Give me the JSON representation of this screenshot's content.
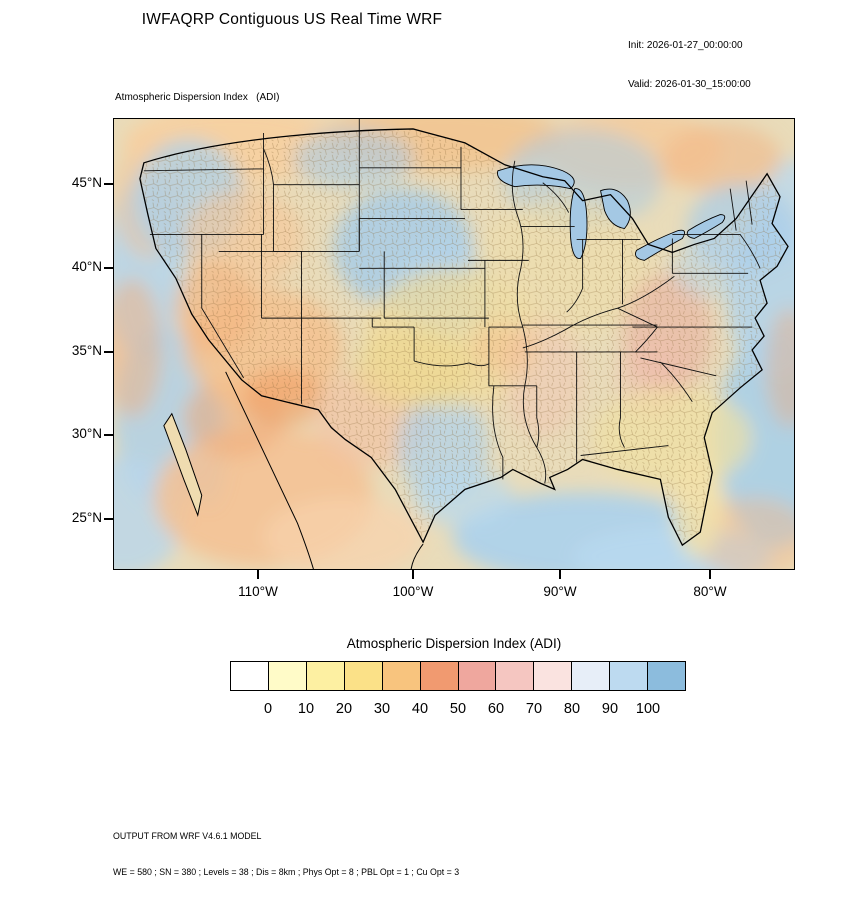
{
  "header": {
    "title": "IWFAQRP Contiguous US Real Time WRF",
    "init": "Init: 2026-01-27_00:00:00",
    "valid": "Valid: 2026-01-30_15:00:00"
  },
  "map": {
    "field_label": "Atmospheric Dispersion Index   (ADI)",
    "lat_labels": [
      "45°N",
      "40°N",
      "35°N",
      "30°N",
      "25°N"
    ],
    "lon_labels": [
      "110°W",
      "100°W",
      "90°W",
      "80°W"
    ]
  },
  "colorbar": {
    "title": "Atmospheric Dispersion Index  (ADI)",
    "tick_labels": [
      "0",
      "10",
      "20",
      "30",
      "40",
      "50",
      "60",
      "70",
      "80",
      "90",
      "100"
    ],
    "colors": [
      "#ffffff",
      "#fffbc8",
      "#fdf0a2",
      "#fbe188",
      "#f8c47e",
      "#f19a70",
      "#efa79e",
      "#f5c6c1",
      "#fae3e0",
      "#e7eef8",
      "#bddaf0",
      "#8cbcdd"
    ]
  },
  "footer": {
    "line1": "OUTPUT FROM WRF V4.6.1 MODEL",
    "line2": "WE = 580 ; SN = 380 ; Levels = 38 ; Dis = 8km ; Phys Opt = 8 ; PBL Opt = 1 ; Cu Opt = 3"
  }
}
